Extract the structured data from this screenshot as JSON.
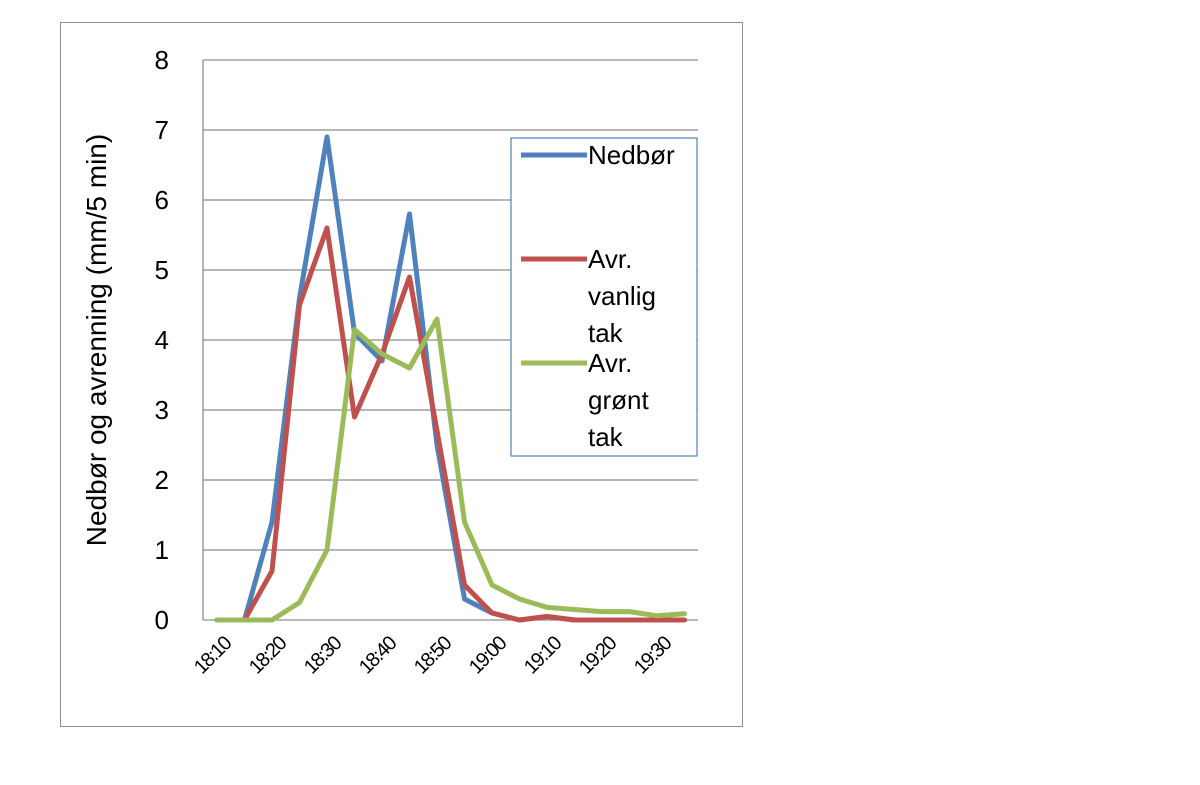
{
  "chart_data": {
    "type": "line",
    "ylabel": "Nedbør og avrenning (mm/5 min)",
    "xlabel": "",
    "ylim": [
      0,
      8
    ],
    "yticks": [
      0,
      1,
      2,
      3,
      4,
      5,
      6,
      7,
      8
    ],
    "grid": true,
    "legend_position": "right",
    "x_tick_labels": [
      "18:10",
      "18:20",
      "18:30",
      "18:40",
      "18:50",
      "19:00",
      "19:10",
      "19:20",
      "19:30"
    ],
    "x": [
      "18:10",
      "18:15",
      "18:20",
      "18:25",
      "18:30",
      "18:35",
      "18:40",
      "18:45",
      "18:50",
      "18:55",
      "19:00",
      "19:05",
      "19:10",
      "19:15",
      "19:20",
      "19:25",
      "19:30",
      "19:35"
    ],
    "series": [
      {
        "name": "Nedbør",
        "color": "#4f81bd",
        "values": [
          0,
          0,
          1.4,
          4.6,
          6.9,
          4.1,
          3.7,
          5.8,
          2.5,
          0.3,
          0.1,
          0,
          0.05,
          0,
          0,
          0,
          0,
          0
        ]
      },
      {
        "name": "Avr. vanlig tak",
        "color": "#c0504d",
        "values": [
          0,
          0,
          0.7,
          4.5,
          5.6,
          2.9,
          3.8,
          4.9,
          2.7,
          0.5,
          0.1,
          0,
          0.05,
          0,
          0,
          0,
          0,
          0
        ]
      },
      {
        "name": "Avr. grønt tak",
        "color": "#9bbb59",
        "values": [
          0,
          0,
          0,
          0.25,
          1.0,
          4.15,
          3.8,
          3.6,
          4.3,
          1.4,
          0.5,
          0.3,
          0.18,
          0.15,
          0.12,
          0.12,
          0.06,
          0.09
        ]
      }
    ]
  },
  "legend": {
    "entries": [
      {
        "lines": [
          "Nedbør"
        ]
      },
      {
        "lines": [
          "Avr.",
          "vanlig",
          "tak"
        ]
      },
      {
        "lines": [
          "Avr.",
          "grønt",
          "tak"
        ]
      }
    ]
  }
}
